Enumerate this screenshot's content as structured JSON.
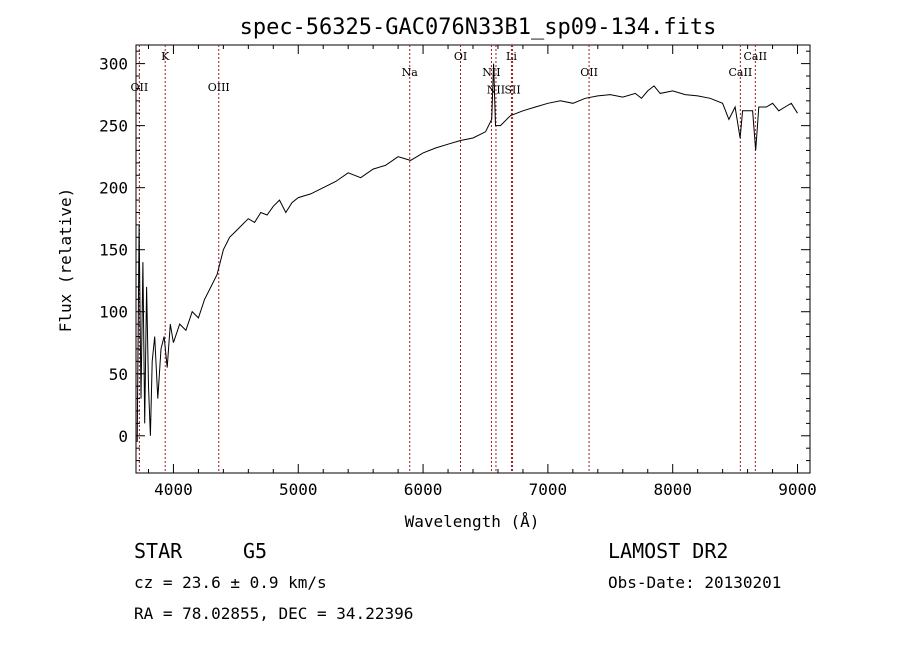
{
  "chart_data": {
    "type": "line",
    "title": "spec-56325-GAC076N33B1_sp09-134.fits",
    "xlabel": "Wavelength (Å)",
    "ylabel": "Flux (relative)",
    "xlim": [
      3700,
      9100
    ],
    "ylim": [
      -30,
      315
    ],
    "xticks": [
      4000,
      5000,
      6000,
      7000,
      8000,
      9000
    ],
    "yticks": [
      0,
      50,
      100,
      150,
      200,
      250,
      300
    ],
    "grid": false,
    "series": [
      {
        "x": [
          3710,
          3725,
          3740,
          3755,
          3770,
          3785,
          3800,
          3815,
          3830,
          3850,
          3875,
          3900,
          3925,
          3950,
          3975,
          4000,
          4050,
          4100,
          4150,
          4200,
          4250,
          4300,
          4350,
          4400,
          4450,
          4500,
          4550,
          4600,
          4650,
          4700,
          4750,
          4800,
          4850,
          4900,
          4950,
          5000,
          5100,
          5200,
          5300,
          5400,
          5500,
          5600,
          5700,
          5800,
          5900,
          6000,
          6100,
          6200,
          6300,
          6400,
          6500,
          6550,
          6565,
          6580,
          6620,
          6700,
          6800,
          6900,
          7000,
          7100,
          7200,
          7300,
          7400,
          7500,
          7600,
          7700,
          7750,
          7800,
          7850,
          7900,
          8000,
          8100,
          8200,
          8300,
          8400,
          8450,
          8500,
          8540,
          8560,
          8600,
          8640,
          8665,
          8690,
          8750,
          8800,
          8850,
          8900,
          8950,
          9000
        ],
        "y": [
          -5,
          170,
          30,
          140,
          10,
          120,
          40,
          0,
          60,
          80,
          30,
          70,
          80,
          55,
          90,
          75,
          90,
          85,
          100,
          95,
          110,
          120,
          130,
          150,
          160,
          165,
          170,
          175,
          172,
          180,
          178,
          185,
          190,
          180,
          188,
          192,
          195,
          200,
          205,
          212,
          208,
          215,
          218,
          225,
          222,
          228,
          232,
          235,
          238,
          240,
          245,
          255,
          300,
          250,
          250,
          258,
          262,
          265,
          268,
          270,
          268,
          272,
          274,
          275,
          273,
          276,
          272,
          278,
          282,
          276,
          278,
          275,
          274,
          272,
          268,
          255,
          265,
          240,
          262,
          262,
          262,
          230,
          265,
          265,
          268,
          262,
          265,
          268,
          260
        ]
      }
    ],
    "lines": [
      {
        "name": "OII",
        "x": 3727,
        "label_y": 278
      },
      {
        "name": "K",
        "x": 3934,
        "label_y": 303
      },
      {
        "name": "OIII",
        "x": 4363,
        "label_y": 278
      },
      {
        "name": "Na",
        "x": 5893,
        "label_y": 290
      },
      {
        "name": "OI",
        "x": 6300,
        "label_y": 303
      },
      {
        "name": "NII",
        "x": 6548,
        "label_y": 290
      },
      {
        "name": "Li",
        "x": 6708,
        "label_y": 303
      },
      {
        "name": "NII",
        "x": 6584,
        "label_y": 276
      },
      {
        "name": "SII",
        "x": 6717,
        "label_y": 276
      },
      {
        "name": "OII",
        "x": 7330,
        "label_y": 290
      },
      {
        "name": "CaII",
        "x": 8542,
        "label_y": 290
      },
      {
        "name": "CaII",
        "x": 8662,
        "label_y": 303
      }
    ]
  },
  "info": {
    "object_class": "STAR",
    "subclass": "G5",
    "survey": "LAMOST DR2",
    "cz_text": "cz = 23.6 ± 0.9 km/s",
    "obs_date_text": "Obs-Date: 20130201",
    "radec_text": "RA =  78.02855, DEC =  34.22396"
  }
}
